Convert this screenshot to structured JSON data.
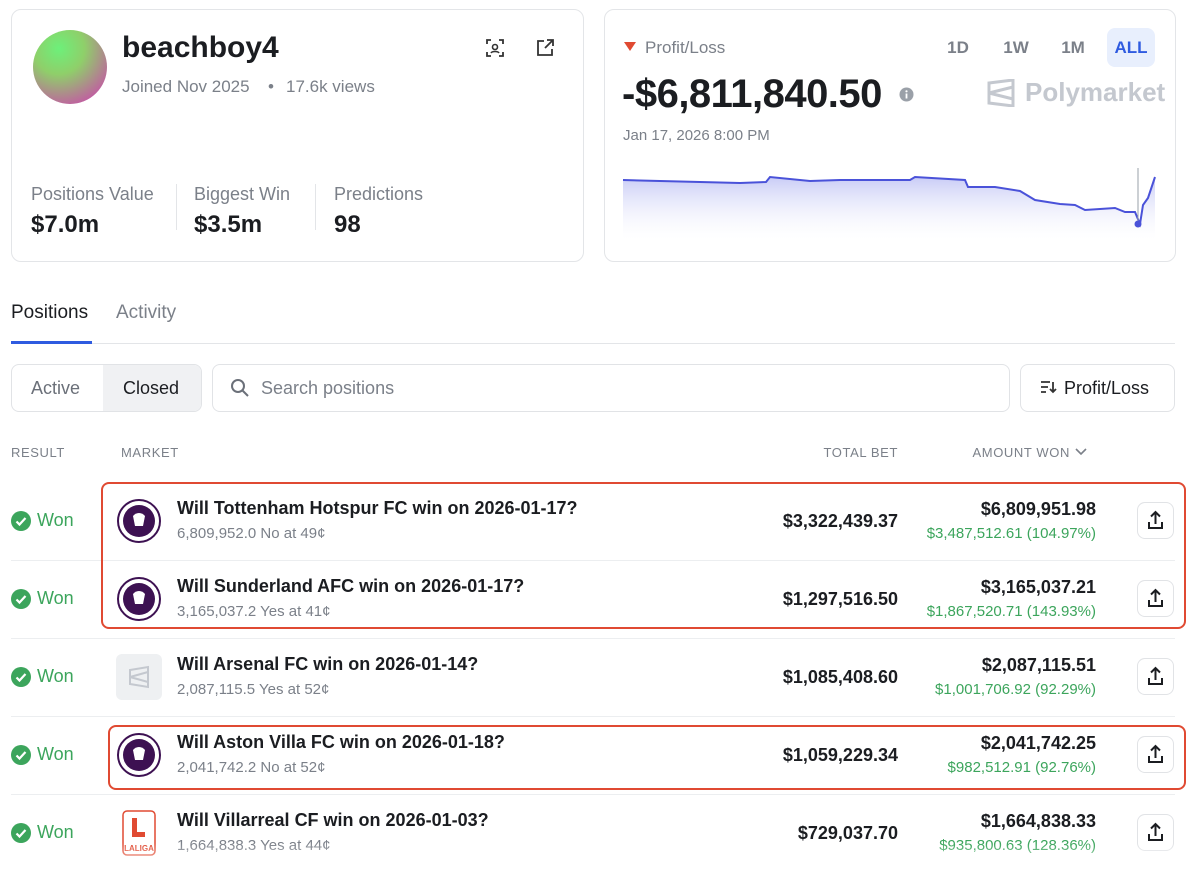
{
  "profile": {
    "username": "beachboy4",
    "joined": "Joined Nov 2025",
    "views": "17.6k views",
    "stats": [
      {
        "label": "Positions Value",
        "value": "$7.0m"
      },
      {
        "label": "Biggest Win",
        "value": "$3.5m"
      },
      {
        "label": "Predictions",
        "value": "98"
      }
    ]
  },
  "pnl": {
    "label": "Profit/Loss",
    "ranges": [
      "1D",
      "1W",
      "1M",
      "ALL"
    ],
    "value": "-$6,811,840.50",
    "date": "Jan 17, 2026 8:00 PM",
    "brand": "Polymarket"
  },
  "tabs": [
    "Positions",
    "Activity"
  ],
  "filters": [
    "Active",
    "Closed"
  ],
  "search_placeholder": "Search positions",
  "sort_button": "Profit/Loss",
  "table": {
    "headers": [
      "RESULT",
      "MARKET",
      "TOTAL BET",
      "AMOUNT WON"
    ],
    "rows": [
      {
        "result": "Won",
        "title": "Will Tottenham Hotspur FC win on 2026-01-17?",
        "subtitle": "6,809,952.0 No at 49¢",
        "total_bet": "$3,322,439.37",
        "amount_won": "$6,809,951.98",
        "profit": "$3,487,512.61 (104.97%)"
      },
      {
        "result": "Won",
        "title": "Will Sunderland AFC win on 2026-01-17?",
        "subtitle": "3,165,037.2 Yes at 41¢",
        "total_bet": "$1,297,516.50",
        "amount_won": "$3,165,037.21",
        "profit": "$1,867,520.71 (143.93%)"
      },
      {
        "result": "Won",
        "title": "Will Arsenal FC win on 2026-01-14?",
        "subtitle": "2,087,115.5 Yes at 52¢",
        "total_bet": "$1,085,408.60",
        "amount_won": "$2,087,115.51",
        "profit": "$1,001,706.92 (92.29%)"
      },
      {
        "result": "Won",
        "title": "Will Aston Villa FC win on 2026-01-18?",
        "subtitle": "2,041,742.2 No at 52¢",
        "total_bet": "$1,059,229.34",
        "amount_won": "$2,041,742.25",
        "profit": "$982,512.91 (92.76%)"
      },
      {
        "result": "Won",
        "title": "Will Villarreal CF win on 2026-01-03?",
        "subtitle": "1,664,838.3 Yes at 44¢",
        "total_bet": "$729,037.70",
        "amount_won": "$1,664,838.33",
        "profit": "$935,800.63 (128.36%)",
        "logo_label": "LALIGA"
      }
    ]
  }
}
